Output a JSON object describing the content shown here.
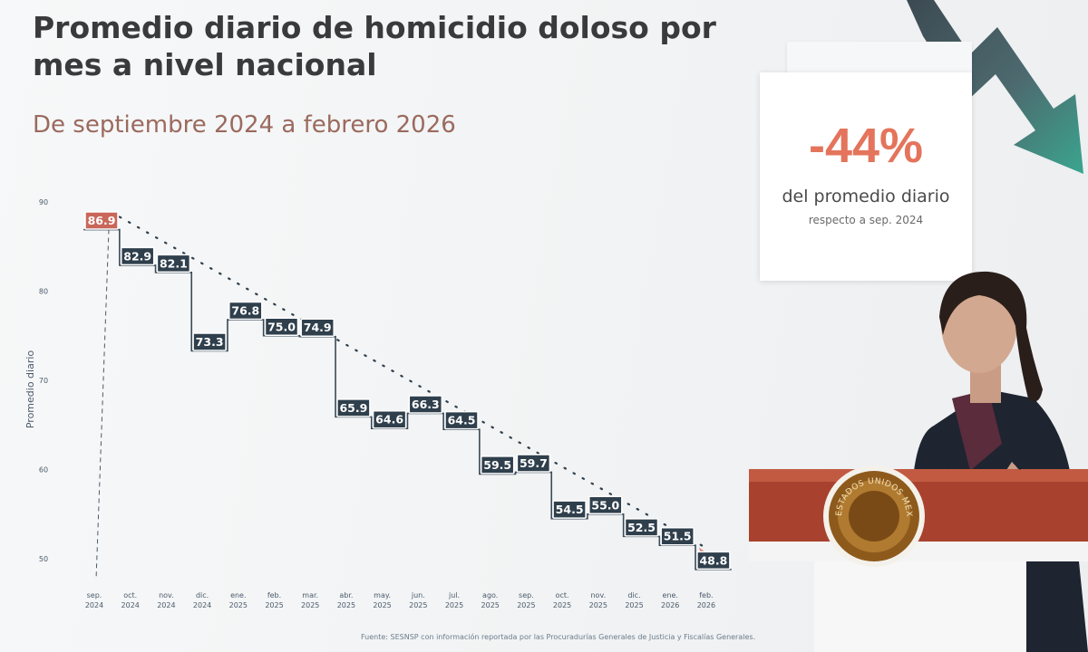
{
  "slide": {
    "title": "Promedio diario de homicidio doloso por mes a nivel nacional",
    "subtitle": "De septiembre 2024 a febrero 2026",
    "source": "Fuente: SESNSP con información reportada por las Procuradurías Generales de Justicia y Fiscalías Generales."
  },
  "stat_card": {
    "value": "-44%",
    "label": "del promedio diario",
    "sublabel": "respecto a sep. 2024"
  },
  "colors": {
    "title": "#3a3a3c",
    "subtitle": "#9b6a5e",
    "accent": "#e4745c",
    "first_label": "#c8675a",
    "label_box": "#2f3f4c",
    "axis_text": "#4a5a6a"
  },
  "seal_text": "ESTADOS UNIDOS MEXICANOS",
  "chart_data": {
    "type": "line",
    "step": true,
    "title": "Promedio diario de homicidio doloso por mes a nivel nacional",
    "subtitle": "De septiembre 2024 a febrero 2026",
    "xlabel": "",
    "ylabel": "Promedio diario",
    "ylim": [
      48,
      90
    ],
    "yticks": [
      50,
      60,
      70,
      80,
      90
    ],
    "grid": false,
    "trend_line": "dotted",
    "categories": [
      [
        "sep.",
        "2024"
      ],
      [
        "oct.",
        "2024"
      ],
      [
        "nov.",
        "2024"
      ],
      [
        "dic.",
        "2024"
      ],
      [
        "ene.",
        "2025"
      ],
      [
        "feb.",
        "2025"
      ],
      [
        "mar.",
        "2025"
      ],
      [
        "abr.",
        "2025"
      ],
      [
        "may.",
        "2025"
      ],
      [
        "jun.",
        "2025"
      ],
      [
        "jul.",
        "2025"
      ],
      [
        "ago.",
        "2025"
      ],
      [
        "sep.",
        "2025"
      ],
      [
        "oct.",
        "2025"
      ],
      [
        "nov.",
        "2025"
      ],
      [
        "dic.",
        "2025"
      ],
      [
        "ene.",
        "2026"
      ],
      [
        "feb.",
        "2026"
      ]
    ],
    "values": [
      86.9,
      82.9,
      82.1,
      73.3,
      76.8,
      75.0,
      74.9,
      65.9,
      64.6,
      66.3,
      64.5,
      59.5,
      59.7,
      54.5,
      55.0,
      52.5,
      51.5,
      48.8
    ],
    "data_labels": [
      "86.9",
      "82.9",
      "82.1",
      "73.3",
      "76.8",
      "75.0",
      "74.9",
      "65.9",
      "64.6",
      "66.3",
      "64.5",
      "59.5",
      "59.7",
      "54.5",
      "55.0",
      "52.5",
      "51.5",
      "48.8"
    ]
  }
}
